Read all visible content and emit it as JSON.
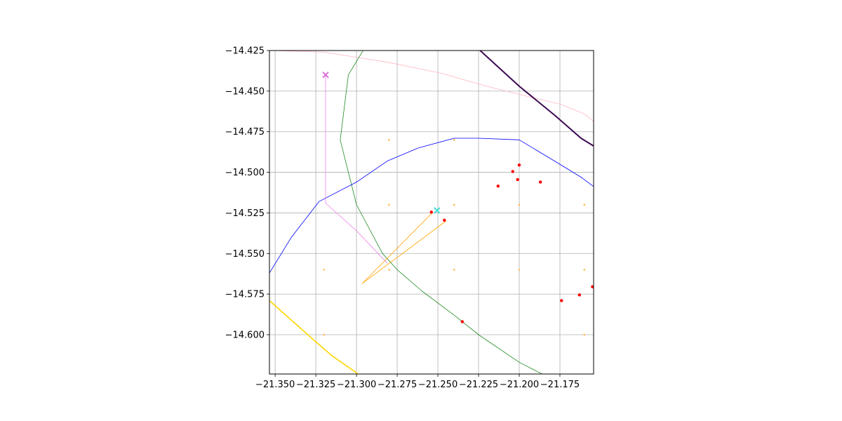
{
  "chart_data": {
    "type": "scatter",
    "title": "",
    "xlabel": "",
    "ylabel": "",
    "xlim": [
      -21.3535,
      -21.1543
    ],
    "ylim": [
      -14.6242,
      -14.425
    ],
    "grid": true,
    "xticks": [
      {
        "value": -21.35,
        "label": "−21.350"
      },
      {
        "value": -21.325,
        "label": "−21.325"
      },
      {
        "value": -21.3,
        "label": "−21.300"
      },
      {
        "value": -21.275,
        "label": "−21.275"
      },
      {
        "value": -21.25,
        "label": "−21.250"
      },
      {
        "value": -21.225,
        "label": "−21.225"
      },
      {
        "value": -21.2,
        "label": "−21.200"
      },
      {
        "value": -21.175,
        "label": "−21.175"
      }
    ],
    "yticks": [
      {
        "value": -14.425,
        "label": "−14.425"
      },
      {
        "value": -14.45,
        "label": "−14.450"
      },
      {
        "value": -14.475,
        "label": "−14.475"
      },
      {
        "value": -14.5,
        "label": "−14.500"
      },
      {
        "value": -14.525,
        "label": "−14.525"
      },
      {
        "value": -14.55,
        "label": "−14.550"
      },
      {
        "value": -14.575,
        "label": "−14.575"
      },
      {
        "value": -14.6,
        "label": "−14.600"
      }
    ],
    "lines": [
      {
        "color": "#ffb6c1",
        "width": 0.8,
        "points": [
          [
            -21.352,
            -14.425
          ],
          [
            -21.32,
            -14.426
          ],
          [
            -21.282,
            -14.432
          ],
          [
            -21.248,
            -14.439
          ],
          [
            -21.22,
            -14.447
          ],
          [
            -21.2,
            -14.452
          ],
          [
            -21.175,
            -14.458
          ],
          [
            -21.16,
            -14.464
          ],
          [
            -21.154,
            -14.469
          ]
        ]
      },
      {
        "color": "#3b0a52",
        "width": 2.0,
        "points": [
          [
            -21.224,
            -14.425
          ],
          [
            -21.2,
            -14.447
          ],
          [
            -21.178,
            -14.465
          ],
          [
            -21.162,
            -14.479
          ],
          [
            -21.154,
            -14.484
          ]
        ]
      },
      {
        "color": "#228b22",
        "width": 0.8,
        "points": [
          [
            -21.296,
            -14.425
          ],
          [
            -21.305,
            -14.44
          ],
          [
            -21.31,
            -14.48
          ],
          [
            -21.305,
            -14.5
          ],
          [
            -21.3,
            -14.52
          ],
          [
            -21.284,
            -14.55
          ],
          [
            -21.275,
            -14.56
          ],
          [
            -21.26,
            -14.573
          ],
          [
            -21.24,
            -14.588
          ],
          [
            -21.225,
            -14.6
          ],
          [
            -21.2,
            -14.617
          ],
          [
            -21.186,
            -14.6242
          ]
        ]
      },
      {
        "color": "#0000ff",
        "width": 0.8,
        "points": [
          [
            -21.3535,
            -14.562
          ],
          [
            -21.34,
            -14.54
          ],
          [
            -21.323,
            -14.518
          ],
          [
            -21.3,
            -14.506
          ],
          [
            -21.281,
            -14.493
          ],
          [
            -21.262,
            -14.485
          ],
          [
            -21.24,
            -14.479
          ],
          [
            -21.225,
            -14.479
          ],
          [
            -21.2,
            -14.48
          ],
          [
            -21.18,
            -14.492
          ],
          [
            -21.162,
            -14.503
          ],
          [
            -21.154,
            -14.509
          ]
        ]
      },
      {
        "color": "#ee82ee",
        "width": 0.8,
        "points": [
          [
            -21.319,
            -14.44
          ],
          [
            -21.319,
            -14.519
          ],
          [
            -21.3,
            -14.536
          ],
          [
            -21.281,
            -14.556
          ]
        ]
      },
      {
        "color": "#ffa500",
        "width": 0.8,
        "points": [
          [
            -21.2965,
            -14.5685
          ],
          [
            -21.253,
            -14.5245
          ]
        ]
      },
      {
        "color": "#ffa500",
        "width": 0.8,
        "points": [
          [
            -21.2965,
            -14.5685
          ],
          [
            -21.245,
            -14.53
          ]
        ]
      },
      {
        "color": "#ffd700",
        "width": 1.6,
        "points": [
          [
            -21.3535,
            -14.579
          ],
          [
            -21.33,
            -14.6
          ],
          [
            -21.315,
            -14.613
          ],
          [
            -21.299,
            -14.6242
          ]
        ]
      }
    ],
    "points": [
      {
        "x": -21.254,
        "y": -14.5245,
        "color": "#ff0000",
        "size": 2.2
      },
      {
        "x": -21.246,
        "y": -14.5295,
        "color": "#ff0000",
        "size": 2.2
      },
      {
        "x": -21.204,
        "y": -14.4995,
        "color": "#ff0000",
        "size": 2.2
      },
      {
        "x": -21.2,
        "y": -14.4955,
        "color": "#ff0000",
        "size": 2.2
      },
      {
        "x": -21.201,
        "y": -14.5045,
        "color": "#ff0000",
        "size": 2.2
      },
      {
        "x": -21.213,
        "y": -14.5085,
        "color": "#ff0000",
        "size": 2.2
      },
      {
        "x": -21.187,
        "y": -14.506,
        "color": "#ff0000",
        "size": 2.2
      },
      {
        "x": -21.235,
        "y": -14.592,
        "color": "#ff0000",
        "size": 2.2
      },
      {
        "x": -21.174,
        "y": -14.579,
        "color": "#ff0000",
        "size": 2.2
      },
      {
        "x": -21.163,
        "y": -14.5755,
        "color": "#ff0000",
        "size": 2.2
      },
      {
        "x": -21.155,
        "y": -14.5705,
        "color": "#ff0000",
        "size": 2.2
      },
      {
        "x": -21.28,
        "y": -14.48,
        "color": "#ffb84d",
        "size": 1.3
      },
      {
        "x": -21.24,
        "y": -14.48,
        "color": "#ffb84d",
        "size": 1.3
      },
      {
        "x": -21.28,
        "y": -14.52,
        "color": "#ffb84d",
        "size": 1.3
      },
      {
        "x": -21.24,
        "y": -14.52,
        "color": "#ffb84d",
        "size": 1.3
      },
      {
        "x": -21.2,
        "y": -14.52,
        "color": "#ffb84d",
        "size": 1.3
      },
      {
        "x": -21.16,
        "y": -14.52,
        "color": "#ffb84d",
        "size": 1.3
      },
      {
        "x": -21.32,
        "y": -14.56,
        "color": "#ffb84d",
        "size": 1.3
      },
      {
        "x": -21.28,
        "y": -14.56,
        "color": "#ffb84d",
        "size": 1.3
      },
      {
        "x": -21.24,
        "y": -14.56,
        "color": "#ffb84d",
        "size": 1.3
      },
      {
        "x": -21.2,
        "y": -14.56,
        "color": "#ffb84d",
        "size": 1.3
      },
      {
        "x": -21.16,
        "y": -14.56,
        "color": "#ffb84d",
        "size": 1.3
      },
      {
        "x": -21.32,
        "y": -14.6,
        "color": "#ffb84d",
        "size": 1.3
      },
      {
        "x": -21.16,
        "y": -14.6,
        "color": "#ffb84d",
        "size": 1.3
      }
    ],
    "markers": [
      {
        "x": -21.319,
        "y": -14.44,
        "color": "#da70d6",
        "shape": "x"
      },
      {
        "x": -21.2505,
        "y": -14.5235,
        "color": "#40e0d0",
        "shape": "x"
      }
    ]
  }
}
